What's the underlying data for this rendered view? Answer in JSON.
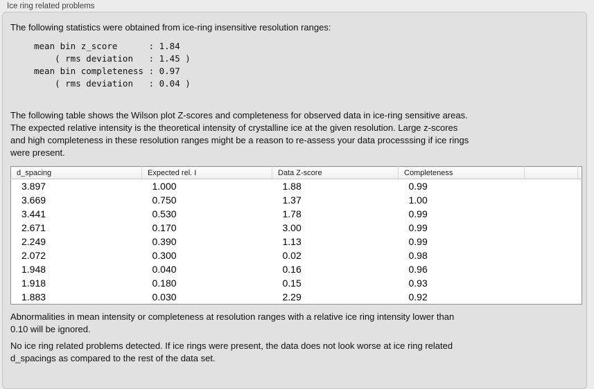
{
  "panel": {
    "title": "Ice ring related problems"
  },
  "intro_text": "The following statistics were obtained from ice-ring insensitive resolution ranges:",
  "stats_block": "mean bin z_score      : 1.84\n    ( rms deviation   : 1.45 )\nmean bin completeness : 0.97\n    ( rms deviation   : 0.04 )",
  "stats": {
    "mean_bin_z_score": "1.84",
    "z_score_rms_deviation": "1.45",
    "mean_bin_completeness": "0.97",
    "completeness_rms_deviation": "0.04"
  },
  "description_text": "The following table shows the Wilson plot Z-scores and completeness for observed data in ice-ring sensitive areas.\nThe expected relative intensity is the theoretical intensity of crystalline ice at the given resolution. Large z-scores\nand high completeness in these resolution ranges might be a reason to re-assess your data processsing if ice rings\nwere present.",
  "table": {
    "columns": [
      "d_spacing",
      "Expected rel. I",
      "Data Z-score",
      "Completeness"
    ],
    "rows": [
      [
        "3.897",
        "1.000",
        "1.88",
        "0.99"
      ],
      [
        "3.669",
        "0.750",
        "1.37",
        "1.00"
      ],
      [
        "3.441",
        "0.530",
        "1.78",
        "0.99"
      ],
      [
        "2.671",
        "0.170",
        "3.00",
        "0.99"
      ],
      [
        "2.249",
        "0.390",
        "1.13",
        "0.99"
      ],
      [
        "2.072",
        "0.300",
        "0.02",
        "0.98"
      ],
      [
        "1.948",
        "0.040",
        "0.16",
        "0.96"
      ],
      [
        "1.918",
        "0.180",
        "0.15",
        "0.93"
      ],
      [
        "1.883",
        "0.030",
        "2.29",
        "0.92"
      ]
    ]
  },
  "footnote_text": "Abnormalities in mean intensity or completeness at resolution ranges with a relative ice ring intensity lower than\n0.10 will be ignored.",
  "conclusion_text": "No ice ring related problems detected. If ice rings were present, the data does not look worse at ice ring related\nd_spacings as compared to the rest of the data set.",
  "colors": {
    "outer_background": "#ececec",
    "panel_background": "#e1e1e1",
    "panel_border": "#c3c3c3",
    "table_background": "#ffffff",
    "table_border": "#8f8f8f",
    "text": "#101010"
  }
}
